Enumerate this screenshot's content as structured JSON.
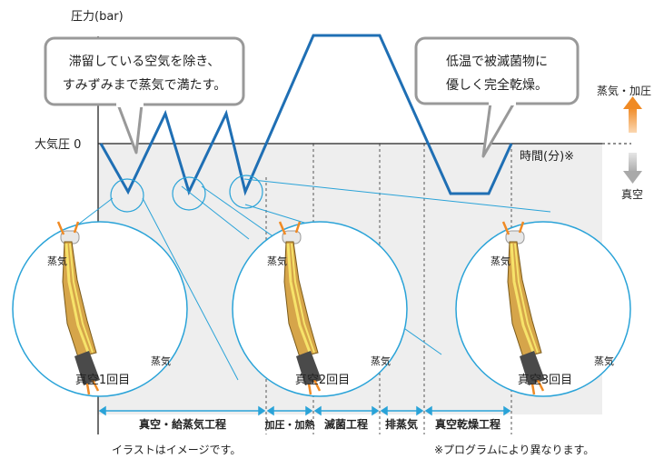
{
  "axis": {
    "y_label": "圧力(bar)",
    "baseline_label": "大気圧 0",
    "x_label": "時間(分)※"
  },
  "side": {
    "up_label": "蒸気・加圧",
    "down_label": "真空"
  },
  "callouts": {
    "left_line1": "滞留している空気を除き、",
    "left_line2": "すみずみまで蒸気で満たす。",
    "right_line1": "低温で被滅菌物に",
    "right_line2": "優しく完全乾燥。"
  },
  "zooms": [
    {
      "steam": "蒸気",
      "steam2": "蒸気",
      "caption": "真空1回目"
    },
    {
      "steam": "蒸気",
      "steam2": "蒸気",
      "caption": "真空2回目"
    },
    {
      "steam": "蒸気",
      "steam2": "蒸気",
      "caption": "真空3回目"
    }
  ],
  "phases": [
    "真空・給蒸気工程",
    "加圧・加熱",
    "滅菌工程",
    "排蒸気",
    "真空乾燥工程"
  ],
  "footnotes": {
    "left": "イラストはイメージです。",
    "right": "※プログラムにより異なります。"
  },
  "colors": {
    "line": "#1f6fb4",
    "accent": "#2aa3d8",
    "arrow_up": "#f08a24",
    "arrow_down": "#b5b5b5",
    "panel": "#eeeeee"
  }
}
